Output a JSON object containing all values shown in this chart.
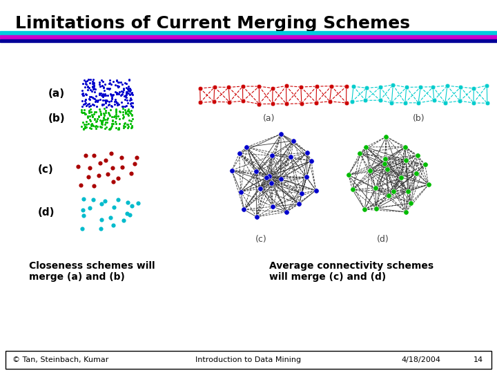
{
  "title": "Limitations of Current Merging Schemes",
  "title_fontsize": 18,
  "title_color": "#000000",
  "background_color": "#FFFFFF",
  "line1_color": "#00CCDD",
  "line2_color": "#CC00CC",
  "line3_color": "#000099",
  "footer_text_left": "© Tan, Steinbach, Kumar",
  "footer_text_center": "Introduction to Data Mining",
  "footer_text_right": "4/18/2004",
  "footer_page": "14",
  "label_a": "(a)",
  "label_b": "(b)",
  "label_c": "(c)",
  "label_d": "(d)",
  "left_caption": "Closeness schemes will\nmerge (a) and (b)",
  "right_caption": "Average connectivity schemes\nwill merge (c) and (d)",
  "dense_blue_color": "#0000CC",
  "dense_green_color": "#00BB00",
  "sparse_red_color": "#AA0000",
  "sparse_cyan_color": "#00BBCC",
  "chain_red": "#CC0000",
  "chain_cyan": "#00CCCC",
  "cluster_blue": "#0000CC",
  "cluster_green": "#00BB00",
  "edge_color_chain_red": "#CC0000",
  "edge_color_chain_cyan": "#00CCCC",
  "edge_color_cluster": "#333333"
}
